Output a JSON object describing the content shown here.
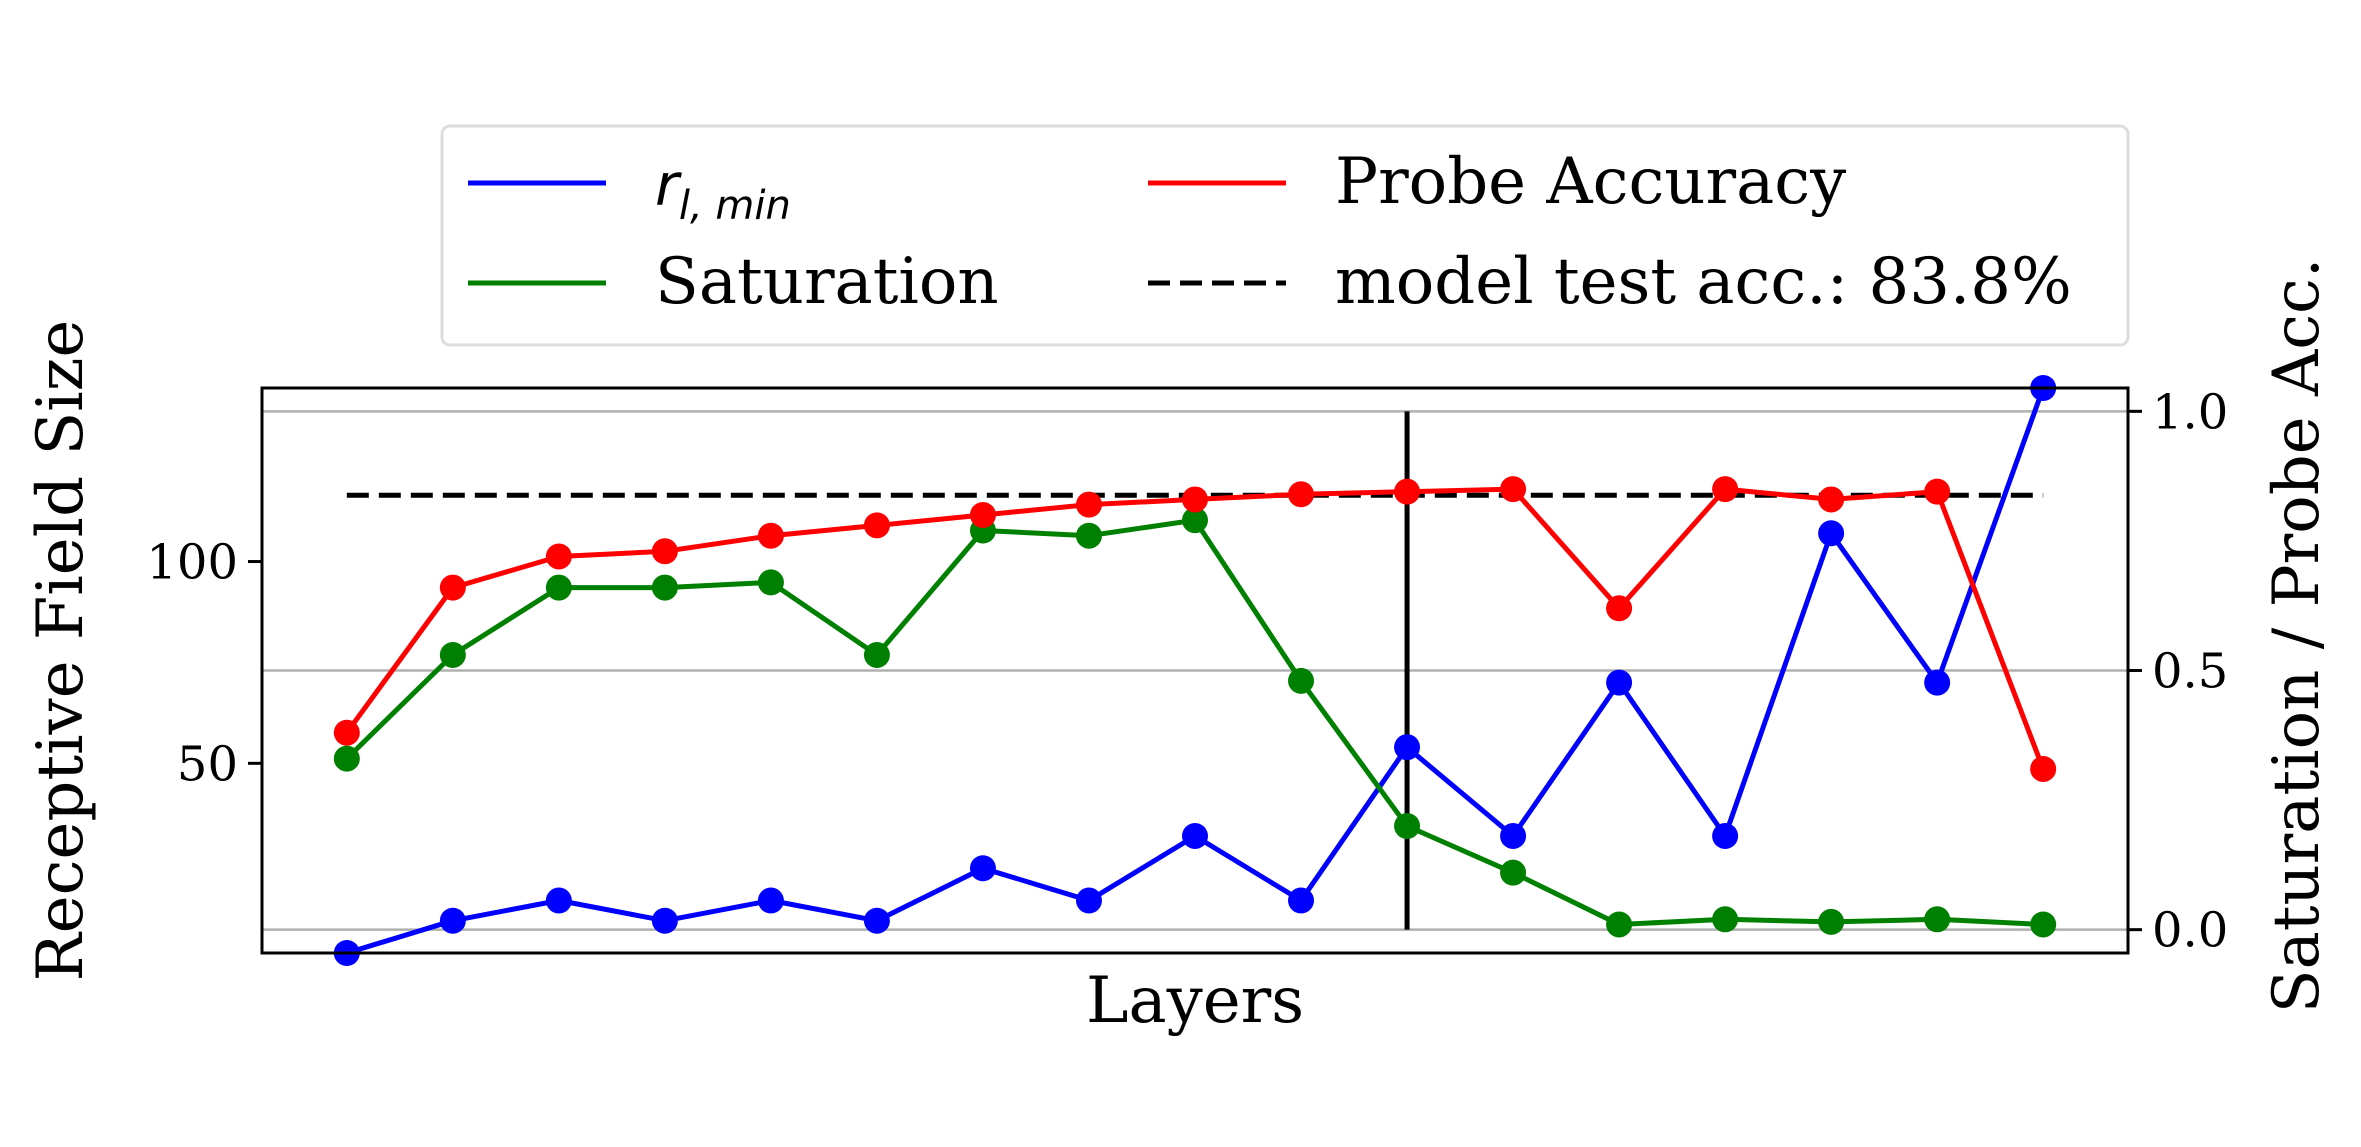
{
  "chart_data": {
    "type": "line",
    "xlabel": "Layers",
    "ylabel_left": "Receptive Field Size",
    "ylabel_right": "Saturation / Probe Acc.",
    "left_ylim": [
      3,
      143
    ],
    "right_ylim": [
      -0.045,
      1.045
    ],
    "left_ticks": [
      "50",
      "100"
    ],
    "left_tick_values": [
      50,
      100
    ],
    "right_ticks": [
      "0.0",
      "0.5",
      "1.0"
    ],
    "right_tick_values": [
      0.0,
      0.5,
      1.0
    ],
    "x": [
      0,
      1,
      2,
      3,
      4,
      5,
      6,
      7,
      8,
      9,
      10,
      11,
      12,
      13,
      14,
      15,
      16
    ],
    "xlim": [
      -0.8,
      16.8
    ],
    "grid": "horizontal, at right-axis ticks",
    "legend_placement": "above plot, centered, 2 columns",
    "vline_x": 10,
    "series": [
      {
        "key": "rf",
        "legend_main": "r",
        "legend_sub": "l, min",
        "axis": "left",
        "color": "#0000ff",
        "values": [
          3,
          11,
          16,
          11,
          16,
          11,
          24,
          16,
          32,
          16,
          54,
          32,
          70,
          32,
          107,
          70,
          143
        ]
      },
      {
        "key": "saturation",
        "name": "Saturation",
        "axis": "right",
        "color": "#008000",
        "values": [
          0.33,
          0.53,
          0.66,
          0.66,
          0.67,
          0.53,
          0.77,
          0.76,
          0.79,
          0.48,
          0.2,
          0.11,
          0.01,
          0.02,
          0.015,
          0.02,
          0.01
        ]
      },
      {
        "key": "probe",
        "name": "Probe Accuracy",
        "axis": "right",
        "color": "#ff0000",
        "values": [
          0.38,
          0.66,
          0.72,
          0.73,
          0.76,
          0.78,
          0.8,
          0.82,
          0.83,
          0.84,
          0.845,
          0.85,
          0.62,
          0.85,
          0.83,
          0.845,
          0.31
        ]
      }
    ],
    "reference_line": {
      "name": "model test acc.: 83.8%",
      "axis": "right",
      "value": 0.838,
      "style": "dashed",
      "color": "#000000"
    }
  }
}
